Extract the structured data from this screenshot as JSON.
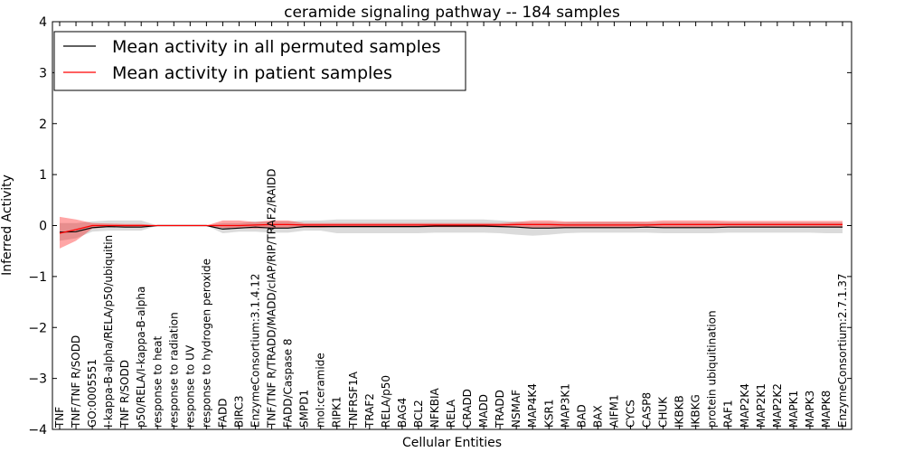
{
  "chart_data": {
    "type": "line",
    "title": "ceramide signaling pathway -- 184 samples",
    "xlabel": "Cellular Entities",
    "ylabel": "Inferred Activity",
    "ylim": [
      -4,
      4
    ],
    "yticks": [
      -4,
      -3,
      -2,
      -1,
      0,
      1,
      2,
      3,
      4
    ],
    "ytick_labels": [
      "−4",
      "−3",
      "−2",
      "−1",
      "0",
      "1",
      "2",
      "3",
      "4"
    ],
    "legend_position": "upper-left",
    "categories": [
      "TNF",
      "TNF/TNF R/SODD",
      "GO:0005551",
      "I-kappa-B-alpha/RELA/p50/ubiquitin",
      "TNF R/SODD",
      "p50/RELA/I-kappa-B-alpha",
      "response to heat",
      "response to radiation",
      "response to UV",
      "response to hydrogen peroxide",
      "FADD",
      "BIRC3",
      "EnzymeConsortium:3.1.4.12",
      "TNF/TNF R/TRADD/MADD/cIAP/RIP/TRAF2/RAIDD",
      "FADD/Caspase 8",
      "SMPD1",
      "mol:ceramide",
      "RIPK1",
      "TNFRSF1A",
      "TRAF2",
      "RELA/p50",
      "BAG4",
      "BCL2",
      "NFKBIA",
      "RELA",
      "CRADD",
      "MADD",
      "TRADD",
      "NSMAF",
      "MAP4K4",
      "KSR1",
      "MAP3K1",
      "BAD",
      "BAX",
      "AIFM1",
      "CYCS",
      "CASP8",
      "CHUK",
      "IKBKB",
      "IKBKG",
      "protein ubiquitination",
      "RAF1",
      "MAP2K4",
      "MAP2K1",
      "MAP2K2",
      "MAPK1",
      "MAPK3",
      "MAPK8",
      "EnzymeConsortium:2.7.1.37"
    ],
    "series": [
      {
        "name": "Mean activity in all permuted samples",
        "color": "#000000",
        "values": [
          -0.13,
          -0.12,
          -0.04,
          -0.02,
          -0.03,
          -0.03,
          0,
          0,
          0,
          0,
          -0.07,
          -0.05,
          -0.03,
          -0.05,
          -0.05,
          -0.02,
          -0.02,
          -0.02,
          -0.02,
          -0.02,
          -0.02,
          -0.02,
          -0.02,
          -0.01,
          -0.01,
          -0.01,
          -0.01,
          -0.02,
          -0.03,
          -0.05,
          -0.05,
          -0.04,
          -0.04,
          -0.04,
          -0.04,
          -0.04,
          -0.03,
          -0.04,
          -0.04,
          -0.04,
          -0.04,
          -0.03,
          -0.03,
          -0.03,
          -0.03,
          -0.03,
          -0.03,
          -0.03,
          -0.03
        ],
        "band_lower": [
          -0.3,
          -0.25,
          -0.12,
          -0.1,
          -0.1,
          -0.1,
          0,
          0,
          0,
          0,
          -0.15,
          -0.12,
          -0.12,
          -0.14,
          -0.14,
          -0.1,
          -0.1,
          -0.15,
          -0.15,
          -0.15,
          -0.15,
          -0.15,
          -0.15,
          -0.14,
          -0.14,
          -0.14,
          -0.14,
          -0.15,
          -0.18,
          -0.2,
          -0.18,
          -0.15,
          -0.14,
          -0.14,
          -0.14,
          -0.14,
          -0.14,
          -0.15,
          -0.15,
          -0.15,
          -0.15,
          -0.14,
          -0.14,
          -0.14,
          -0.14,
          -0.14,
          -0.14,
          -0.15,
          -0.15
        ],
        "band_upper": [
          0.05,
          0.05,
          0.08,
          0.1,
          0.1,
          0.1,
          0,
          0,
          0,
          0,
          0.05,
          0.05,
          0.08,
          0.08,
          0.08,
          0.1,
          0.1,
          0.12,
          0.12,
          0.12,
          0.12,
          0.12,
          0.12,
          0.12,
          0.12,
          0.12,
          0.12,
          0.1,
          0.08,
          0.06,
          0.06,
          0.06,
          0.07,
          0.07,
          0.07,
          0.07,
          0.06,
          0.06,
          0.06,
          0.06,
          0.06,
          0.06,
          0.06,
          0.06,
          0.06,
          0.06,
          0.06,
          0.06,
          0.06
        ]
      },
      {
        "name": "Mean activity in patient samples",
        "color": "#ff0000",
        "values": [
          -0.15,
          -0.08,
          0.0,
          0.0,
          0.0,
          0.0,
          0,
          0,
          0,
          0,
          0.0,
          0.0,
          0.01,
          0.02,
          0.02,
          0.01,
          0.01,
          0.01,
          0.01,
          0.01,
          0.01,
          0.01,
          0.01,
          0.01,
          0.01,
          0.01,
          0.01,
          0.01,
          0.02,
          0.02,
          0.02,
          0.01,
          0.01,
          0.01,
          0.01,
          0.01,
          0.01,
          0.02,
          0.02,
          0.02,
          0.02,
          0.02,
          0.02,
          0.02,
          0.02,
          0.02,
          0.02,
          0.02,
          0.02
        ],
        "band_lower": [
          -0.45,
          -0.3,
          -0.06,
          -0.03,
          -0.03,
          -0.02,
          0,
          0,
          0,
          0,
          -0.05,
          -0.05,
          -0.06,
          -0.05,
          -0.05,
          -0.04,
          -0.04,
          -0.03,
          -0.03,
          -0.03,
          -0.03,
          -0.03,
          -0.03,
          -0.03,
          -0.03,
          -0.03,
          -0.03,
          -0.03,
          -0.03,
          -0.04,
          -0.04,
          -0.04,
          -0.04,
          -0.04,
          -0.04,
          -0.04,
          -0.04,
          -0.04,
          -0.04,
          -0.04,
          -0.04,
          -0.04,
          -0.04,
          -0.04,
          -0.04,
          -0.04,
          -0.04,
          -0.04,
          -0.04
        ],
        "band_upper": [
          0.17,
          0.12,
          0.05,
          0.04,
          0.03,
          0.03,
          0,
          0,
          0,
          0,
          0.1,
          0.1,
          0.07,
          0.1,
          0.1,
          0.05,
          0.05,
          0.05,
          0.05,
          0.05,
          0.05,
          0.05,
          0.05,
          0.05,
          0.05,
          0.05,
          0.05,
          0.05,
          0.07,
          0.1,
          0.1,
          0.08,
          0.08,
          0.08,
          0.08,
          0.08,
          0.08,
          0.1,
          0.1,
          0.1,
          0.1,
          0.09,
          0.09,
          0.09,
          0.09,
          0.09,
          0.09,
          0.09,
          0.09
        ]
      }
    ]
  }
}
